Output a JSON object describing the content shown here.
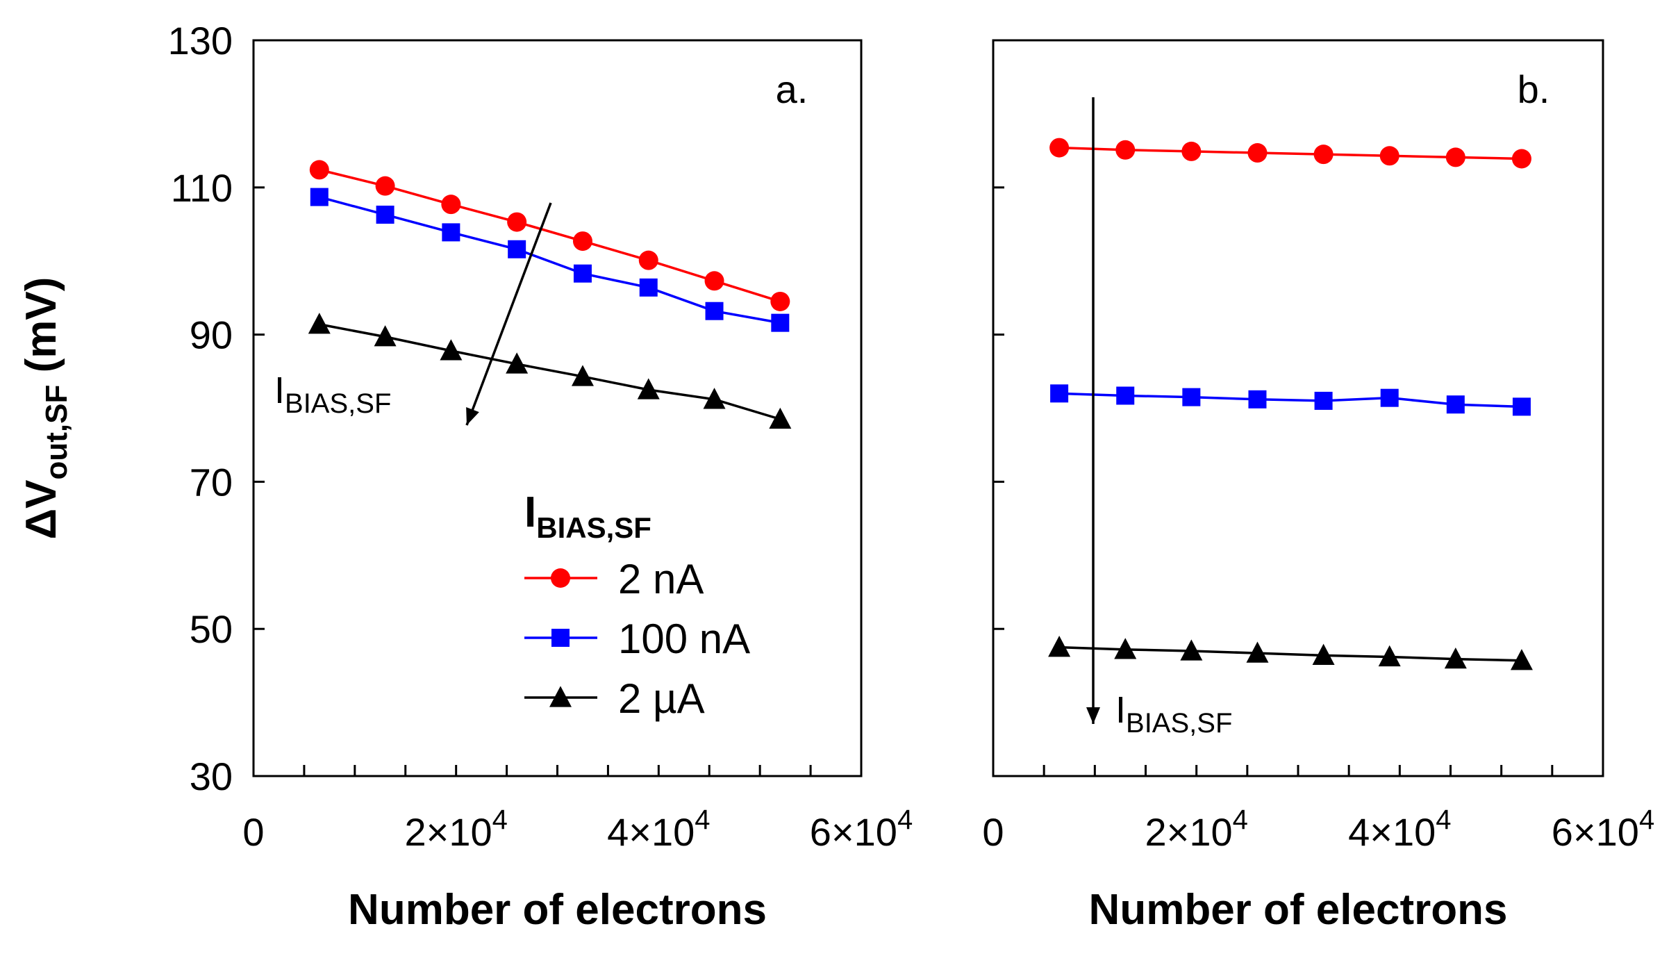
{
  "chart_data": [
    {
      "panel": "a.",
      "type": "line",
      "xlabel": "Number of electrons",
      "ylabel": "ΔV",
      "ylabel_sub": "out,SF",
      "ylabel_unit": "(mV)",
      "xlim": [
        0,
        60000
      ],
      "ylim": [
        30,
        130
      ],
      "x_ticks": [
        {
          "value": 0,
          "label": "0"
        },
        {
          "value": 20000,
          "label": "2×10",
          "exp": "4"
        },
        {
          "value": 40000,
          "label": "4×10",
          "exp": "4"
        },
        {
          "value": 60000,
          "label": "6×10",
          "exp": "4"
        }
      ],
      "y_ticks": [
        {
          "value": 30,
          "label": "30"
        },
        {
          "value": 50,
          "label": "50"
        },
        {
          "value": 70,
          "label": "70"
        },
        {
          "value": 90,
          "label": "90"
        },
        {
          "value": 110,
          "label": "110"
        },
        {
          "value": 130,
          "label": "130"
        }
      ],
      "x": [
        6500,
        13000,
        19500,
        26000,
        32500,
        39000,
        45500,
        52000
      ],
      "series": [
        {
          "name": "2 nA",
          "color": "#ff0000",
          "marker": "circle",
          "values": [
            112.4,
            110.2,
            107.7,
            105.3,
            102.7,
            100.1,
            97.3,
            94.5
          ]
        },
        {
          "name": "100 nA",
          "color": "#0000ff",
          "marker": "square",
          "values": [
            108.7,
            106.3,
            103.9,
            101.6,
            98.3,
            96.4,
            93.2,
            91.6
          ]
        },
        {
          "name": "2 µA",
          "color": "#000000",
          "marker": "triangle",
          "values": [
            91.4,
            89.7,
            87.8,
            86.0,
            84.3,
            82.5,
            81.2,
            78.5
          ]
        }
      ],
      "legend": {
        "title": "I",
        "title_sub": "BIAS,SF",
        "placement": "center"
      },
      "annotation": {
        "text": "I",
        "sub": "BIAS,SF",
        "arrow": "diagonal down-left across series"
      }
    },
    {
      "panel": "b.",
      "type": "line",
      "xlabel": "Number of electrons",
      "xlim": [
        0,
        60000
      ],
      "ylim": [
        30,
        130
      ],
      "x_ticks": [
        {
          "value": 0,
          "label": "0"
        },
        {
          "value": 20000,
          "label": "2×10",
          "exp": "4"
        },
        {
          "value": 40000,
          "label": "4×10",
          "exp": "4"
        },
        {
          "value": 60000,
          "label": "6×10",
          "exp": "4"
        }
      ],
      "x": [
        6500,
        13000,
        19500,
        26000,
        32500,
        39000,
        45500,
        52000
      ],
      "series": [
        {
          "name": "2 nA",
          "color": "#ff0000",
          "marker": "circle",
          "values": [
            115.4,
            115.1,
            114.9,
            114.7,
            114.5,
            114.3,
            114.1,
            113.9
          ]
        },
        {
          "name": "100 nA",
          "color": "#0000ff",
          "marker": "square",
          "values": [
            82.0,
            81.7,
            81.5,
            81.2,
            81.0,
            81.4,
            80.5,
            80.2
          ]
        },
        {
          "name": "2 µA",
          "color": "#000000",
          "marker": "triangle",
          "values": [
            47.5,
            47.2,
            47.0,
            46.7,
            46.4,
            46.2,
            45.9,
            45.7
          ]
        }
      ],
      "annotation": {
        "text": "I",
        "sub": "BIAS,SF",
        "arrow": "vertical down across series"
      }
    }
  ]
}
